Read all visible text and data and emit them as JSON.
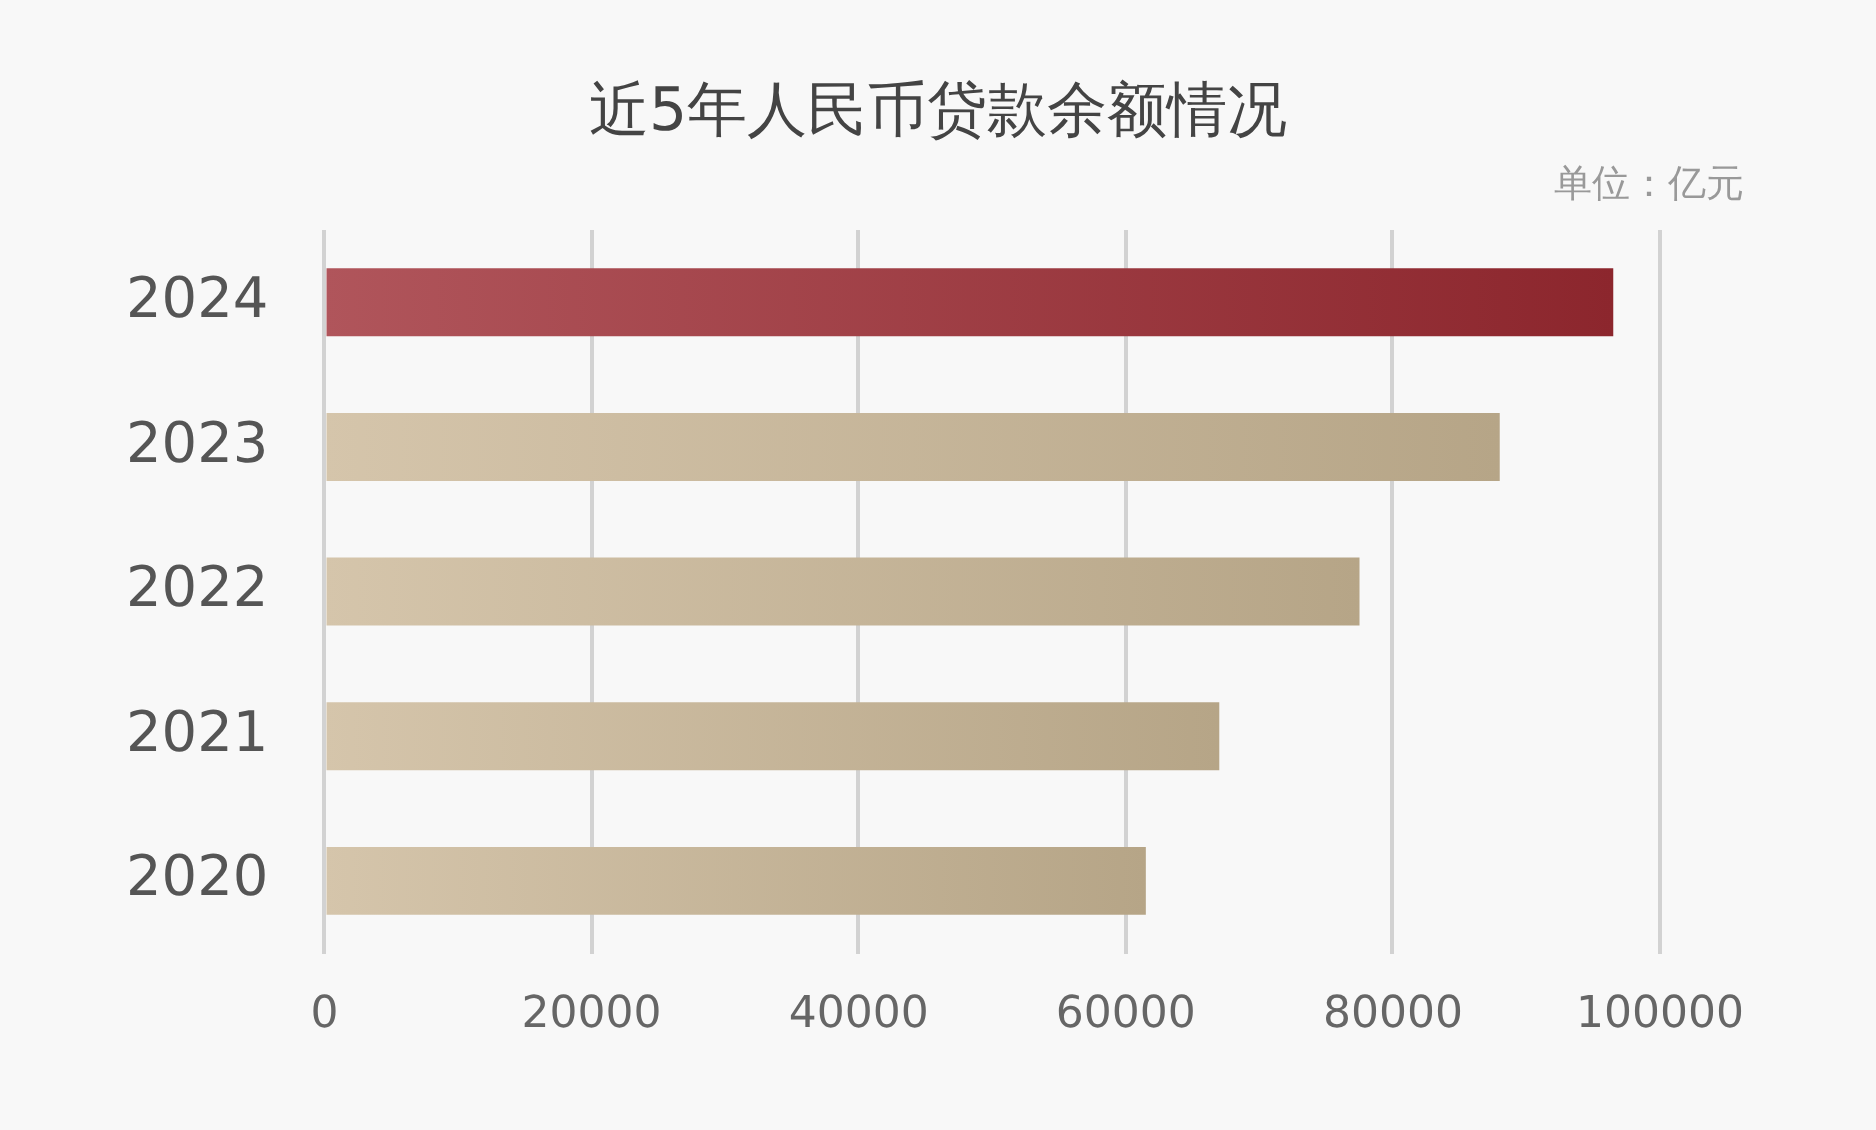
{
  "chart_data": {
    "type": "bar",
    "orientation": "horizontal",
    "title": "近5年人民币贷款余额情况",
    "annotations": [
      "单位：亿元"
    ],
    "categories": [
      "2024",
      "2023",
      "2022",
      "2021",
      "2020"
    ],
    "values": [
      96500,
      88000,
      77500,
      67000,
      61500
    ],
    "colors": [
      "#9c2a32",
      "#cab796",
      "#cab796",
      "#cab796",
      "#cab796"
    ],
    "xlim": [
      0,
      100000
    ],
    "xticks": [
      0,
      20000,
      40000,
      60000,
      80000,
      100000
    ],
    "grid": "x"
  }
}
